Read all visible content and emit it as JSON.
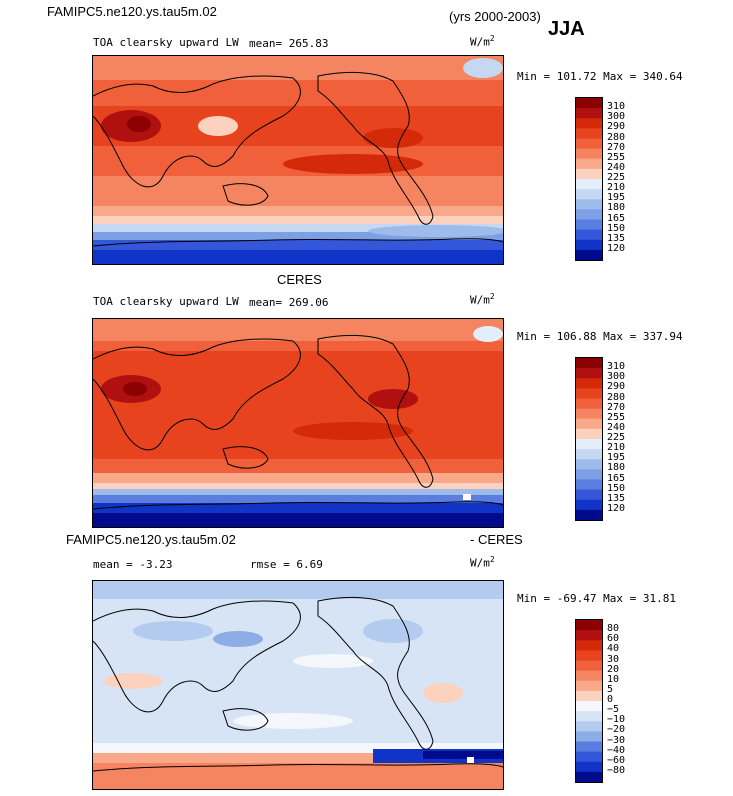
{
  "header": {
    "case_name": "FAMIPC5.ne120.ys.tau5m.02",
    "years": "(yrs 2000-2003)",
    "season": "JJA"
  },
  "panels": [
    {
      "title": "",
      "variable": "TOA clearsky upward LW",
      "mean_label": "mean=",
      "mean_value": "265.83",
      "units": "W/m",
      "units_sup": "2",
      "minmax": "Min = 101.72 Max = 340.64",
      "colorbar_levels": [
        "310",
        "300",
        "290",
        "280",
        "270",
        "255",
        "240",
        "225",
        "210",
        "195",
        "180",
        "165",
        "150",
        "135",
        "120"
      ],
      "colorbar_colors": [
        "#8b0000",
        "#b01010",
        "#d42a0a",
        "#e8431f",
        "#f0603a",
        "#f58460",
        "#f9a98a",
        "#fcd2be",
        "#e4eefa",
        "#c5d8f2",
        "#9dbcec",
        "#7d9fe5",
        "#5a7de0",
        "#3357d8",
        "#1034c8",
        "#000a8c"
      ]
    },
    {
      "title": "CERES",
      "variable": "TOA clearsky upward LW",
      "mean_label": "mean=",
      "mean_value": "269.06",
      "units": "W/m",
      "units_sup": "2",
      "minmax": "Min = 106.88 Max = 337.94",
      "colorbar_levels": [
        "310",
        "300",
        "290",
        "280",
        "270",
        "255",
        "240",
        "225",
        "210",
        "195",
        "180",
        "165",
        "150",
        "135",
        "120"
      ],
      "colorbar_colors": [
        "#8b0000",
        "#b01010",
        "#d42a0a",
        "#e8431f",
        "#f0603a",
        "#f58460",
        "#f9a98a",
        "#fcd2be",
        "#e4eefa",
        "#c5d8f2",
        "#9dbcec",
        "#7d9fe5",
        "#5a7de0",
        "#3357d8",
        "#1034c8",
        "#000a8c"
      ]
    },
    {
      "title": "FAMIPC5.ne120.ys.tau5m.02",
      "title_right": "- CERES",
      "variable": "",
      "mean_label": "mean =",
      "mean_value": "-3.23",
      "rmse_label": "rmse =",
      "rmse_value": "6.69",
      "units": "W/m",
      "units_sup": "2",
      "minmax": "Min = -69.47 Max =  31.81",
      "colorbar_levels": [
        "80",
        "60",
        "40",
        "30",
        "20",
        "10",
        "5",
        "0",
        "−5",
        "−10",
        "−20",
        "−30",
        "−40",
        "−60",
        "−80"
      ],
      "colorbar_colors": [
        "#8b0000",
        "#b01010",
        "#d42a0a",
        "#e8431f",
        "#f0603a",
        "#f58460",
        "#f9a98a",
        "#fcd2be",
        "#f4f7fc",
        "#d6e4f6",
        "#b2cbee",
        "#8cade6",
        "#5a7de0",
        "#3357d8",
        "#1034c8",
        "#000a8c"
      ]
    }
  ],
  "chart_data": [
    {
      "type": "heatmap",
      "title": "TOA clearsky upward LW",
      "subtitle": "FAMIPC5.ne120.ys.tau5m.02 (yrs 2000-2003) JJA",
      "units": "W/m2",
      "mean": 265.83,
      "min": 101.72,
      "max": 340.64,
      "contour_levels": [
        120,
        135,
        150,
        165,
        180,
        195,
        210,
        225,
        240,
        255,
        270,
        280,
        290,
        300,
        310
      ],
      "colormap": "blue-white-red"
    },
    {
      "type": "heatmap",
      "title": "TOA clearsky upward LW",
      "subtitle": "CERES",
      "units": "W/m2",
      "mean": 269.06,
      "min": 106.88,
      "max": 337.94,
      "contour_levels": [
        120,
        135,
        150,
        165,
        180,
        195,
        210,
        225,
        240,
        255,
        270,
        280,
        290,
        300,
        310
      ],
      "colormap": "blue-white-red"
    },
    {
      "type": "heatmap",
      "title": "FAMIPC5.ne120.ys.tau5m.02 - CERES",
      "units": "W/m2",
      "mean": -3.23,
      "rmse": 6.69,
      "min": -69.47,
      "max": 31.81,
      "contour_levels": [
        -80,
        -60,
        -40,
        -30,
        -20,
        -10,
        -5,
        0,
        5,
        10,
        20,
        30,
        40,
        60,
        80
      ],
      "colormap": "blue-white-red"
    }
  ]
}
